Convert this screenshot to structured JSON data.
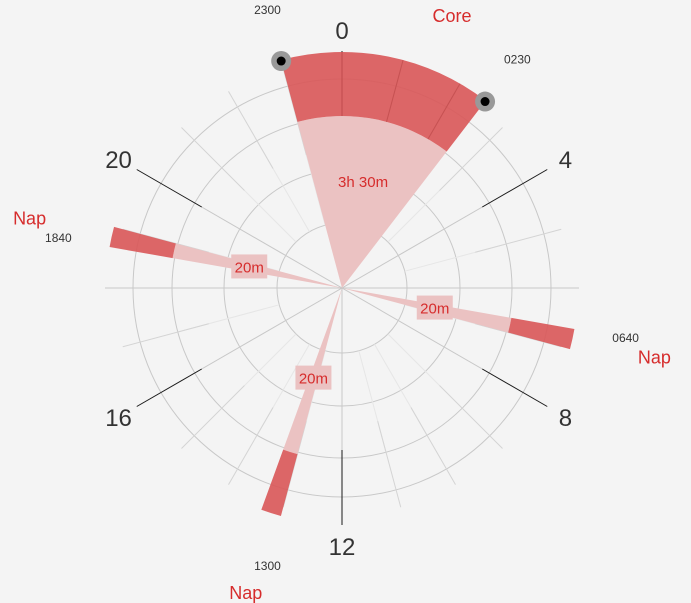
{
  "chart_data": {
    "type": "polar-sleep-schedule",
    "hours_per_revolution": 24,
    "hour_labels": [
      "0",
      "4",
      "8",
      "12",
      "16",
      "20"
    ],
    "segments": [
      {
        "name": "Core",
        "start": "2300",
        "end": "0230",
        "start_hour": 23.0,
        "end_hour": 2.5,
        "duration_label": "3h 30m",
        "has_handles": true
      },
      {
        "name": "Nap",
        "start": "0640",
        "end": "0700",
        "start_hour": 6.667,
        "end_hour": 7.0,
        "duration_label": "20m",
        "has_handles": false
      },
      {
        "name": "Nap",
        "start": "1300",
        "end": "1320",
        "start_hour": 13.0,
        "end_hour": 13.333,
        "duration_label": "20m",
        "has_handles": false
      },
      {
        "name": "Nap",
        "start": "1840",
        "end": "1900",
        "start_hour": 18.667,
        "end_hour": 19.0,
        "duration_label": "20m",
        "has_handles": false
      }
    ],
    "time_labels": [
      {
        "text": "2300",
        "hour": 23.0
      },
      {
        "text": "0230",
        "hour": 2.5
      },
      {
        "text": "0640",
        "hour": 6.667
      },
      {
        "text": "1300",
        "hour": 13.0
      },
      {
        "text": "1840",
        "hour": 18.667
      }
    ],
    "colors": {
      "background": "#f4f4f4",
      "ring_line": "#c8c8c8",
      "minor_tick": "#d4d4d4",
      "major_tick": "#1a1a1a",
      "segment_dark": "#d9595a",
      "segment_light": "#ebc2c2",
      "label_red": "#d62c2c",
      "text": "#333333",
      "handle_ring": "#999999",
      "handle_dot": "#000000"
    }
  }
}
